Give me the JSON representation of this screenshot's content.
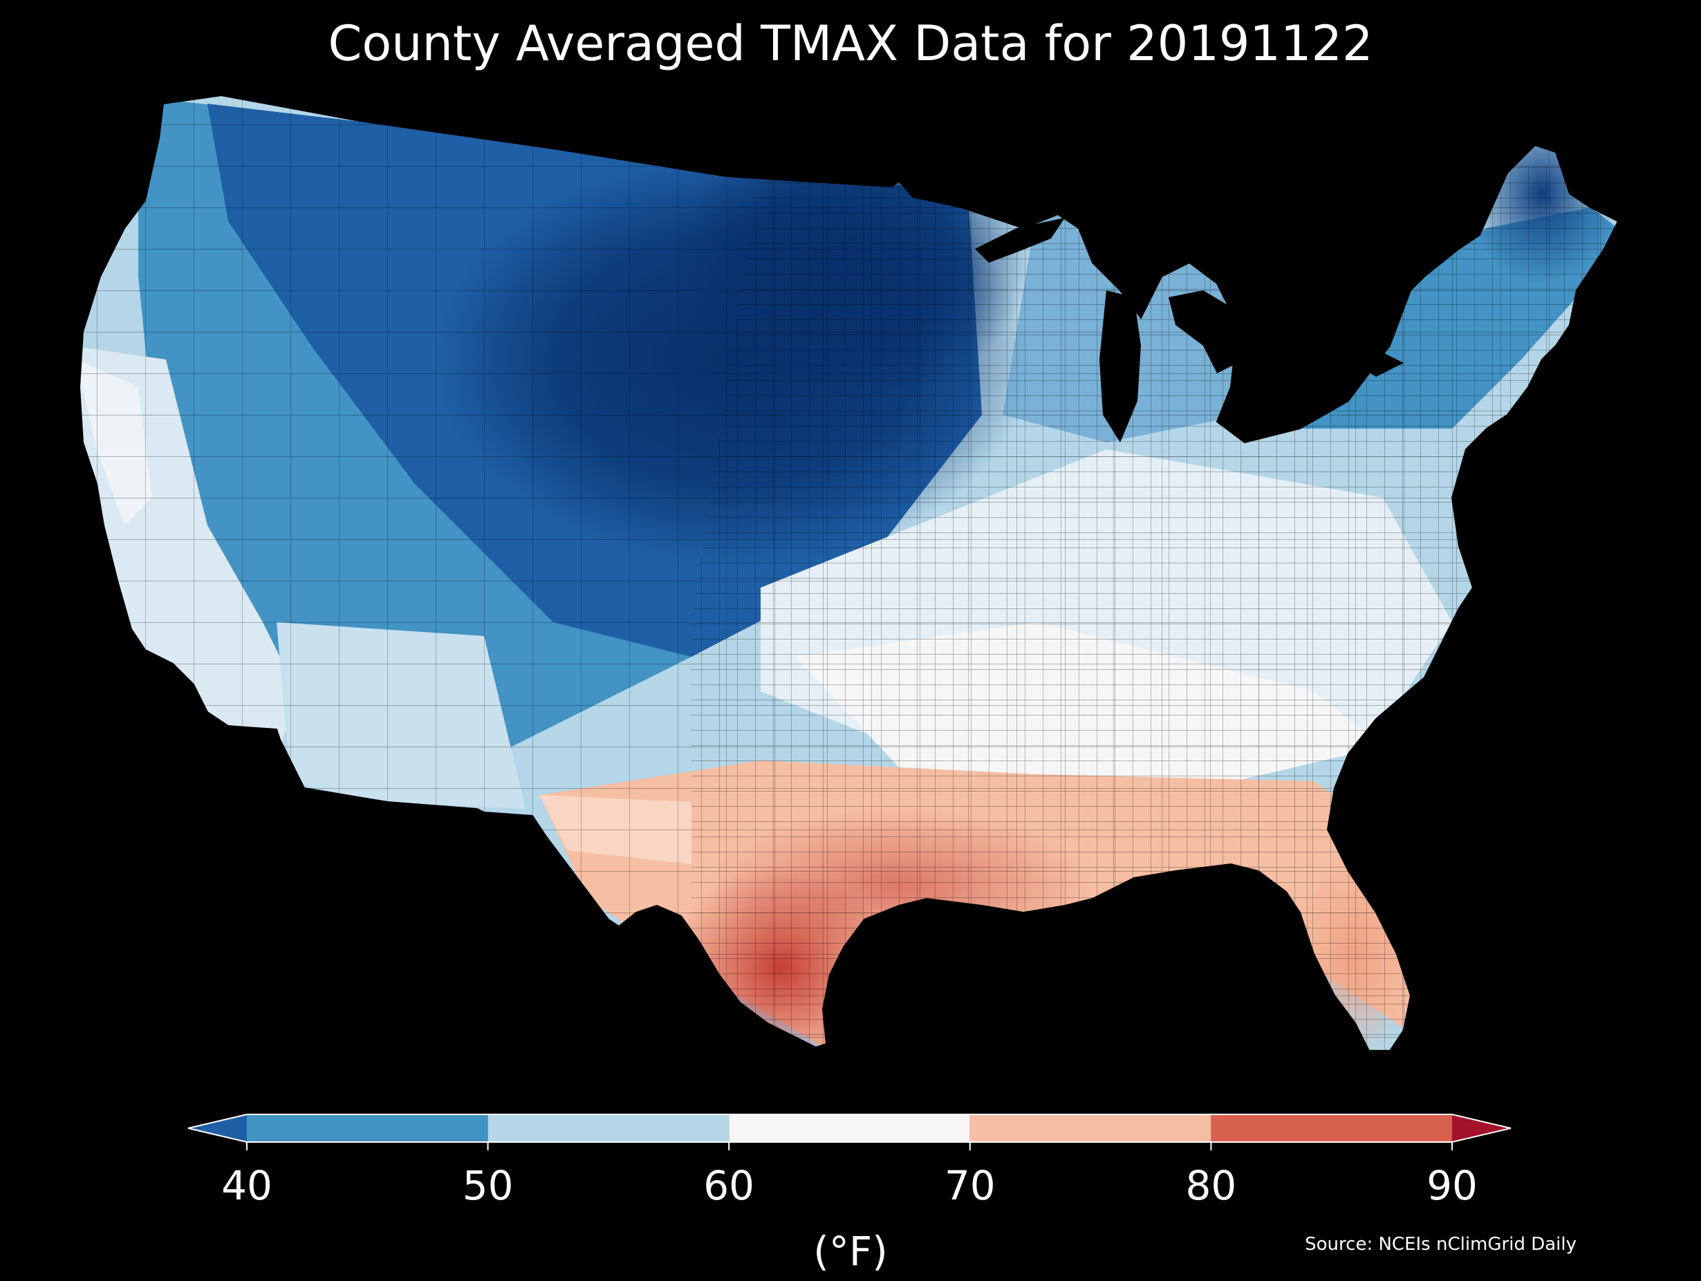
{
  "title": "County Averaged TMAX Data for 20191122",
  "colorbar": {
    "unit": "(°F)",
    "ticks": [
      "40",
      "50",
      "60",
      "70",
      "80",
      "90"
    ],
    "bins": [
      {
        "min": null,
        "max": 40,
        "color": "#1f5fa6"
      },
      {
        "min": 40,
        "max": 50,
        "color": "#4393c4"
      },
      {
        "min": 50,
        "max": 60,
        "color": "#b4d6e8"
      },
      {
        "min": 60,
        "max": 70,
        "color": "#f6f6f6"
      },
      {
        "min": 70,
        "max": 80,
        "color": "#f6bea3"
      },
      {
        "min": 80,
        "max": 90,
        "color": "#d9614f"
      },
      {
        "min": 90,
        "max": null,
        "color": "#a3122a"
      }
    ]
  },
  "source": "Source: NCEIs nClimGrid Daily",
  "colors": {
    "background": "#000000",
    "deep_cold": "#08306b",
    "cold": "#1f5fa6",
    "cool": "#4393c4",
    "mild": "#b4d6e8",
    "neutral": "#f6f6f6",
    "warm": "#f6bea3",
    "hot": "#d9614f"
  }
}
